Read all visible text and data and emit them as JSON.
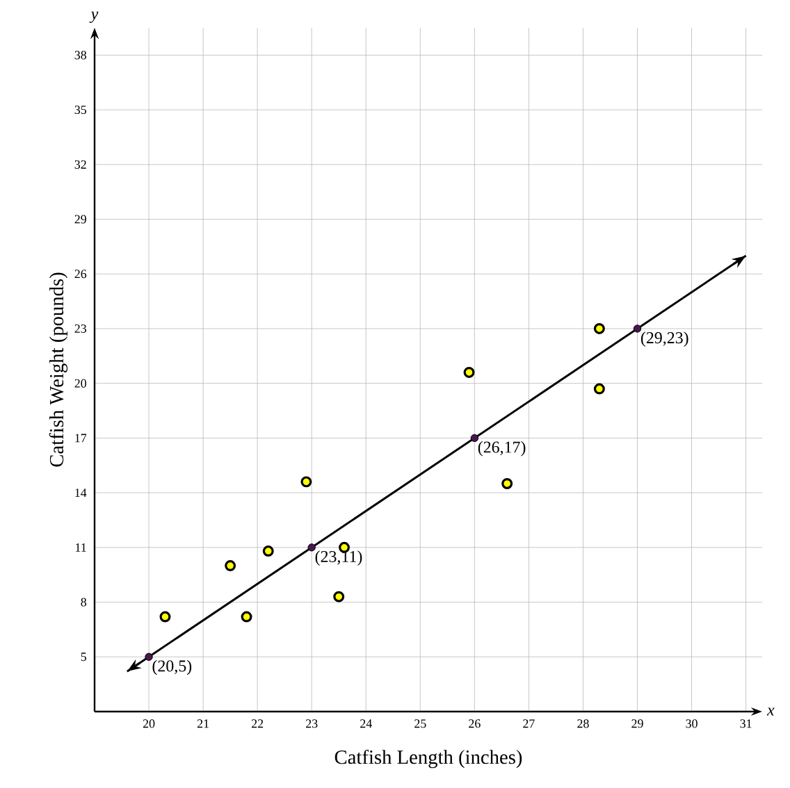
{
  "chart_data": {
    "type": "scatter",
    "xlabel": "Catfish Length (inches)",
    "ylabel": "Catfish Weight (pounds)",
    "xlim": [
      19,
      31.3
    ],
    "ylim": [
      2,
      39.5
    ],
    "xticks": [
      20,
      21,
      22,
      23,
      24,
      25,
      26,
      27,
      28,
      29,
      30,
      31
    ],
    "yticks": [
      5,
      8,
      11,
      14,
      17,
      20,
      23,
      26,
      29,
      32,
      35,
      38
    ],
    "grid": true,
    "marker": "circle",
    "series": [
      {
        "color": "#ffff00",
        "x": [
          20.3,
          21.5,
          21.8,
          22.2,
          22.9,
          23.6,
          23.5,
          25.9,
          26.6,
          28.3,
          28.3
        ],
        "values": [
          7.2,
          10.0,
          7.2,
          10.8,
          14.6,
          11.0,
          8.3,
          20.6,
          14.5,
          23.0,
          19.7
        ]
      },
      {
        "type": "line",
        "color": "#000000",
        "marker": "none",
        "x": [
          19.6,
          31
        ],
        "values": [
          4.2,
          27
        ]
      },
      {
        "color": "#4b1650",
        "x": [
          20,
          23,
          26,
          29
        ],
        "values": [
          5,
          11,
          17,
          23
        ]
      }
    ],
    "annotations": [
      "x",
      "y",
      {
        "text": "(20,5)",
        "x": 20,
        "y": 5
      },
      {
        "text": "(23,11)",
        "x": 23,
        "y": 11
      },
      {
        "text": "(26,17)",
        "x": 26,
        "y": 17
      },
      {
        "text": "(29,23)",
        "x": 29,
        "y": 23
      }
    ]
  }
}
